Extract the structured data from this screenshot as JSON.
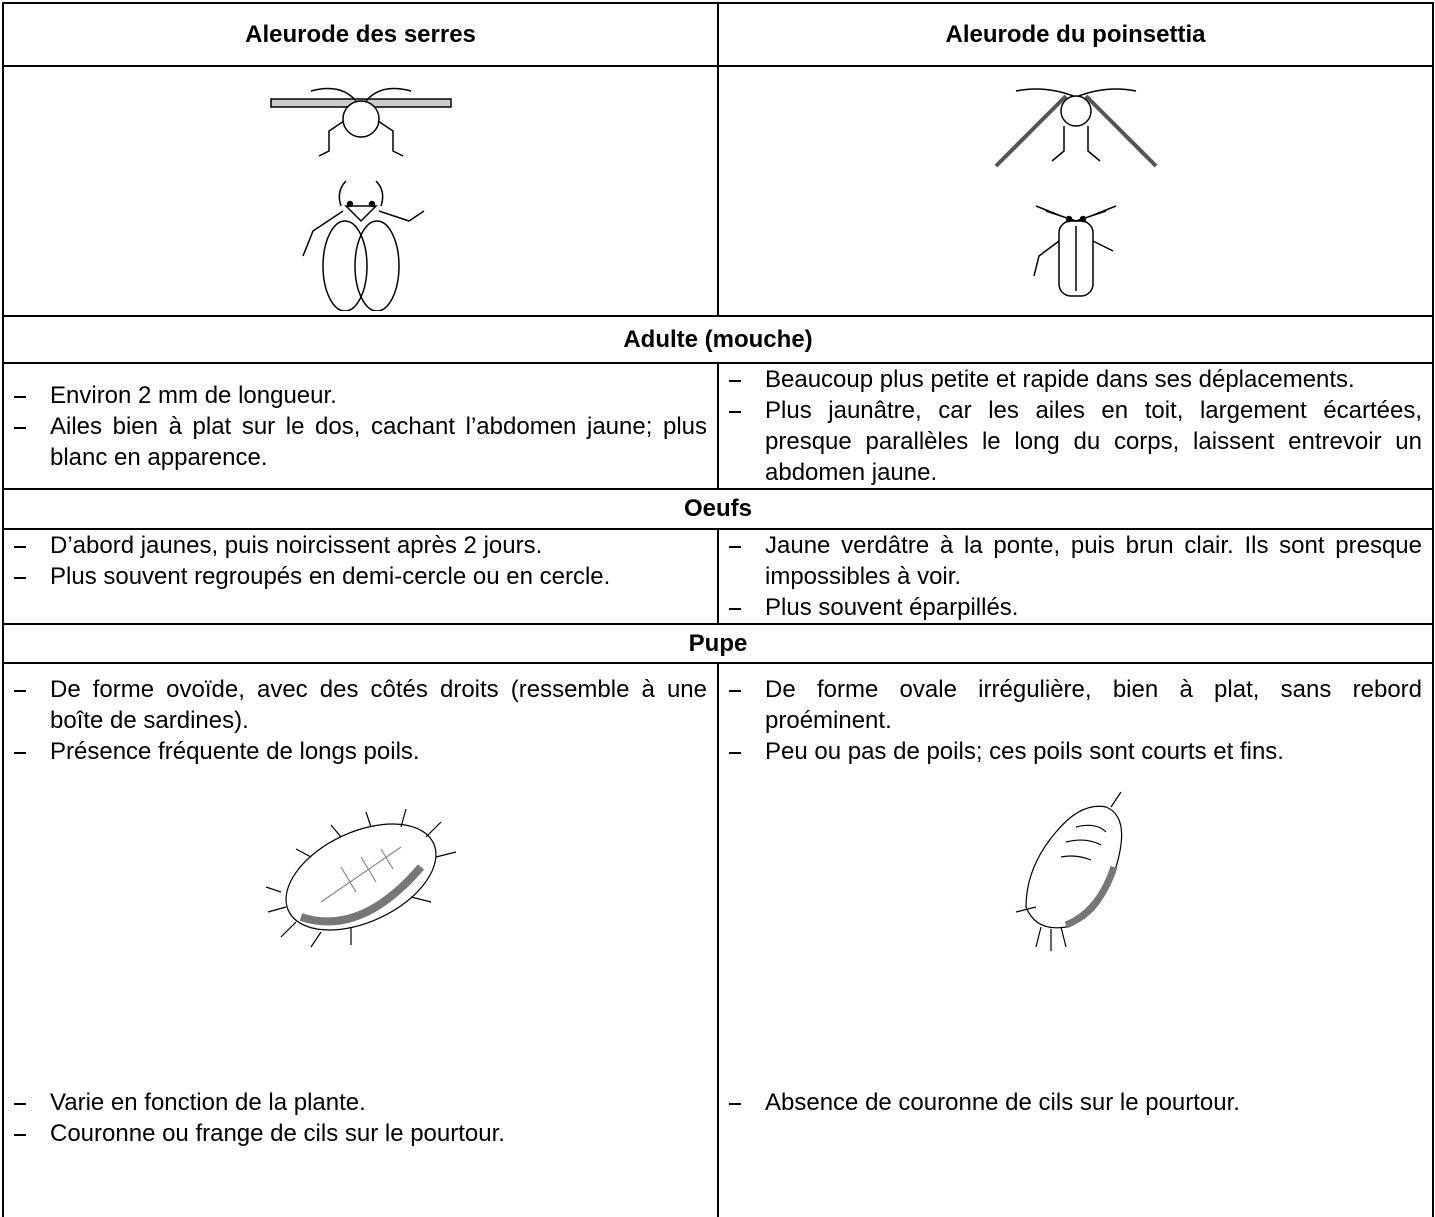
{
  "header": {
    "left": "Aleurode des serres",
    "right": "Aleurode du poinsettia"
  },
  "sections": [
    {
      "title": "Adulte (mouche)",
      "left": [
        "Environ 2 mm de longueur.",
        "Ailes bien à plat sur le dos, cachant l’abdomen jaune; plus blanc en apparence."
      ],
      "right": [
        "Beaucoup plus petite et rapide dans ses déplacements.",
        "Plus jaunâtre, car les ailes en toit, largement écartées, presque parallèles le long du corps, laissent entrevoir un abdomen jaune."
      ]
    },
    {
      "title": "Oeufs",
      "left": [
        "D’abord jaunes, puis noircissent après 2 jours.",
        "Plus souvent regroupés en demi-cercle ou en cercle."
      ],
      "right": [
        "Jaune verdâtre à la ponte, puis brun clair. Ils sont presque impossibles à voir.",
        "Plus souvent éparpillés."
      ]
    },
    {
      "title": "Pupe",
      "left": [
        "De forme ovoïde, avec des côtés droits (ressemble à une boîte de sardines).",
        "Présence fréquente de longs poils."
      ],
      "right": [
        "De forme ovale irrégulière, bien à plat, sans rebord proéminent.",
        "Peu ou pas de poils; ces poils sont courts et fins."
      ],
      "left_after": [
        "Varie en fonction de la plante.",
        "Couronne ou frange de cils sur le pourtour."
      ],
      "right_after": [
        "Absence de couronne de cils sur le pourtour."
      ]
    }
  ]
}
